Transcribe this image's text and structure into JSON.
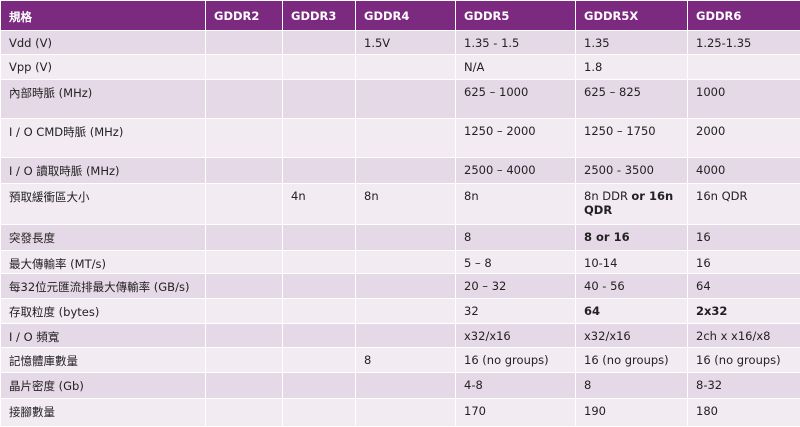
{
  "table": {
    "header": [
      "規格",
      "GDDR2",
      "GDDR3",
      "GDDR4",
      "GDDR5",
      "GDDR5X",
      "GDDR6"
    ],
    "rows": [
      [
        "Vdd (V)",
        null,
        null,
        "1.5V",
        "1.35 - 1.5",
        "1.35",
        "1.25-1.35"
      ],
      [
        "Vpp (V)",
        null,
        null,
        null,
        "N/A",
        "1.8",
        null
      ],
      [
        "內部時脈 (MHz)",
        null,
        null,
        null,
        "625 – 1000",
        "625 – 825",
        "1000"
      ],
      [
        "I / O CMD時脈 (MHz)",
        null,
        null,
        null,
        "1250 – 2000",
        "1250 – 1750",
        "2000"
      ],
      [
        "I / O 讀取時脈 (MHz)",
        null,
        null,
        null,
        "2500 – 4000",
        "2500 - 3500",
        "4000"
      ],
      [
        "預取緩衝區大小",
        null,
        "4n",
        "8n",
        "8n",
        [
          {
            "text": "8n DDR"
          },
          {
            "text": "or 16n QDR",
            "bold": true
          }
        ],
        "16n QDR"
      ],
      [
        "突發長度",
        null,
        null,
        null,
        "8",
        {
          "text": "8 or 16",
          "bold": true
        },
        "16"
      ],
      [
        "最大傳輸率 (MT/s)",
        null,
        null,
        null,
        "5 – 8",
        "10-14",
        "16"
      ],
      [
        "每32位元匯流排最大傳輸率 (GB/s)",
        null,
        null,
        null,
        "20 – 32",
        "40 - 56",
        "64"
      ],
      [
        "存取粒度 (bytes)",
        null,
        null,
        null,
        "32",
        {
          "text": "64",
          "bold": true
        },
        {
          "text": "2x32",
          "bold": true
        }
      ],
      [
        "I / O 頻寬",
        null,
        null,
        null,
        "x32/x16",
        "x32/x16",
        "2ch x x16/x8"
      ],
      [
        "記憶體庫數量",
        null,
        null,
        "8",
        "16 (no groups)",
        "16 (no groups)",
        "16 (no groups)"
      ],
      [
        "晶片密度 (Gb)",
        null,
        null,
        null,
        "4-8",
        "8",
        "8-32"
      ],
      [
        "接腳數量",
        null,
        null,
        null,
        "170",
        "190",
        "180"
      ]
    ]
  }
}
